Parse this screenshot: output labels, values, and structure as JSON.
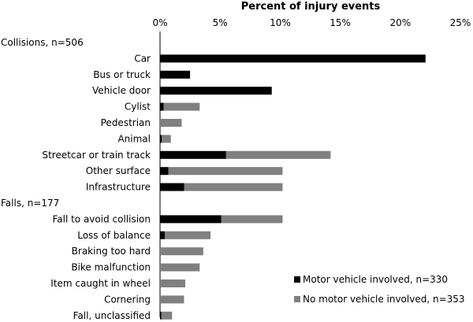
{
  "chart_data": {
    "type": "bar",
    "orientation": "horizontal",
    "stacked": true,
    "title": "Percent of injury events",
    "x_axis_position": "top",
    "xlim": [
      0,
      25
    ],
    "x_ticks": [
      "0%",
      "5%",
      "10%",
      "15%",
      "20%",
      "25%"
    ],
    "grid": false,
    "legend_position": "bottom-right",
    "groups": [
      {
        "label": "Collisions, n=506",
        "categories": [
          "Car",
          "Bus or truck",
          "Vehicle door",
          "Cylist",
          "Pedestrian",
          "Animal",
          "Streetcar or train track",
          "Other surface",
          "Infrastructure"
        ]
      },
      {
        "label": "Falls, n=177",
        "categories": [
          "Fall to avoid collision",
          "Loss of balance",
          "Braking too hard",
          "Bike malfunction",
          "Item caught in wheel",
          "Cornering",
          "Fall, unclassified"
        ]
      }
    ],
    "series": [
      {
        "name": "Motor vehicle involved, n=330",
        "color": "#000000",
        "values": [
          22.1,
          2.5,
          9.3,
          0.3,
          0.0,
          0.15,
          5.5,
          0.7,
          2.0,
          5.1,
          0.4,
          0.0,
          0.0,
          0.0,
          0.0,
          0.1
        ]
      },
      {
        "name": "No motor vehicle involved, n=353",
        "color": "#808080",
        "values": [
          0.0,
          0.0,
          0.0,
          3.0,
          1.8,
          0.75,
          8.7,
          9.5,
          8.2,
          5.1,
          3.8,
          3.6,
          3.3,
          2.1,
          2.0,
          0.9
        ]
      }
    ]
  }
}
